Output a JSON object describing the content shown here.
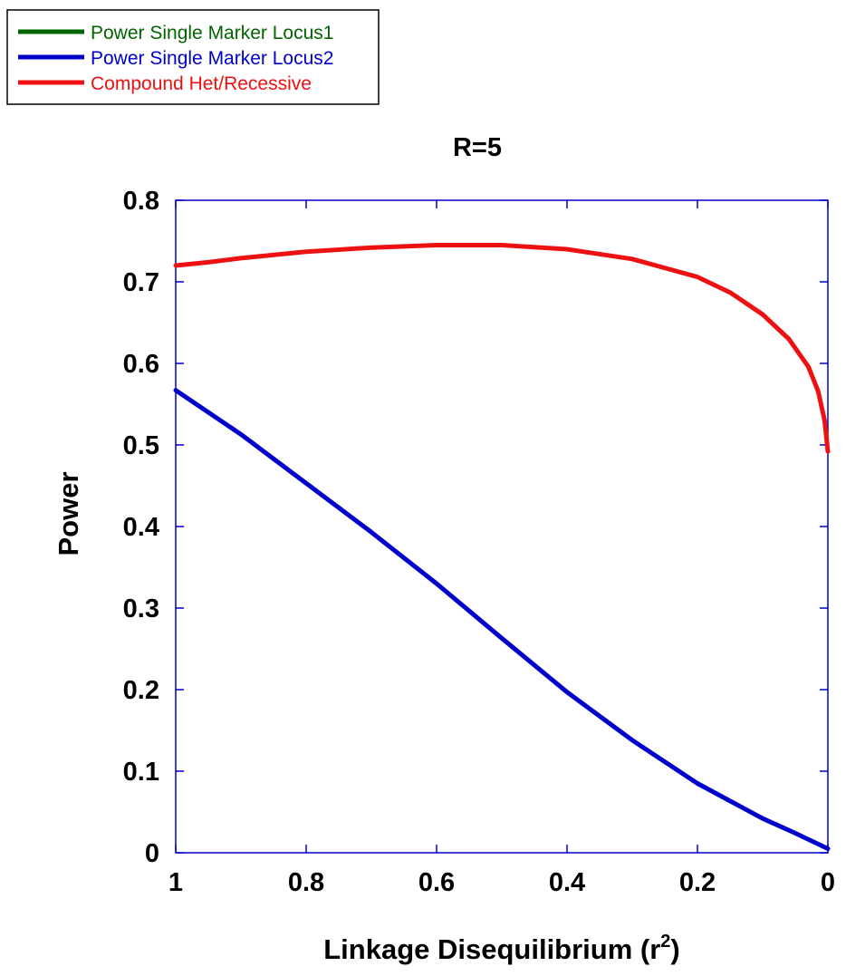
{
  "chart_data": {
    "type": "line",
    "title": "R=5",
    "xlabel": "Linkage Disequilibrium (r",
    "xlabel_sup": "2",
    "xlabel_suffix": ")",
    "ylabel": "Power",
    "xlim": [
      1,
      0
    ],
    "ylim": [
      0,
      0.8
    ],
    "x_reversed": true,
    "xticks": [
      1,
      0.8,
      0.6,
      0.4,
      0.2,
      0
    ],
    "xtick_labels": [
      "1",
      "0.8",
      "0.6",
      "0.4",
      "0.2",
      "0"
    ],
    "yticks": [
      0,
      0.1,
      0.2,
      0.3,
      0.4,
      0.5,
      0.6,
      0.7,
      0.8
    ],
    "ytick_labels": [
      "0",
      "0.1",
      "0.2",
      "0.3",
      "0.4",
      "0.5",
      "0.6",
      "0.7",
      "0.8"
    ],
    "grid": false,
    "legend_position": "top-left, outside plot",
    "series": [
      {
        "name": "Power Single Marker Locus1",
        "color": "#006400",
        "x": [],
        "y": []
      },
      {
        "name": "Power Single Marker Locus2",
        "color": "#0000cc",
        "x": [
          1.0,
          0.9,
          0.8,
          0.7,
          0.6,
          0.5,
          0.4,
          0.3,
          0.2,
          0.1,
          0.05,
          0.0
        ],
        "y": [
          0.567,
          0.513,
          0.453,
          0.393,
          0.33,
          0.263,
          0.197,
          0.138,
          0.085,
          0.042,
          0.024,
          0.005
        ]
      },
      {
        "name": "Compound Het/Recessive",
        "color": "#ee1111",
        "x": [
          1.0,
          0.95,
          0.9,
          0.8,
          0.7,
          0.6,
          0.5,
          0.4,
          0.3,
          0.2,
          0.15,
          0.1,
          0.06,
          0.03,
          0.015,
          0.005,
          0.0
        ],
        "y": [
          0.72,
          0.724,
          0.729,
          0.737,
          0.742,
          0.745,
          0.745,
          0.74,
          0.728,
          0.706,
          0.687,
          0.66,
          0.63,
          0.596,
          0.566,
          0.53,
          0.492
        ]
      }
    ]
  }
}
